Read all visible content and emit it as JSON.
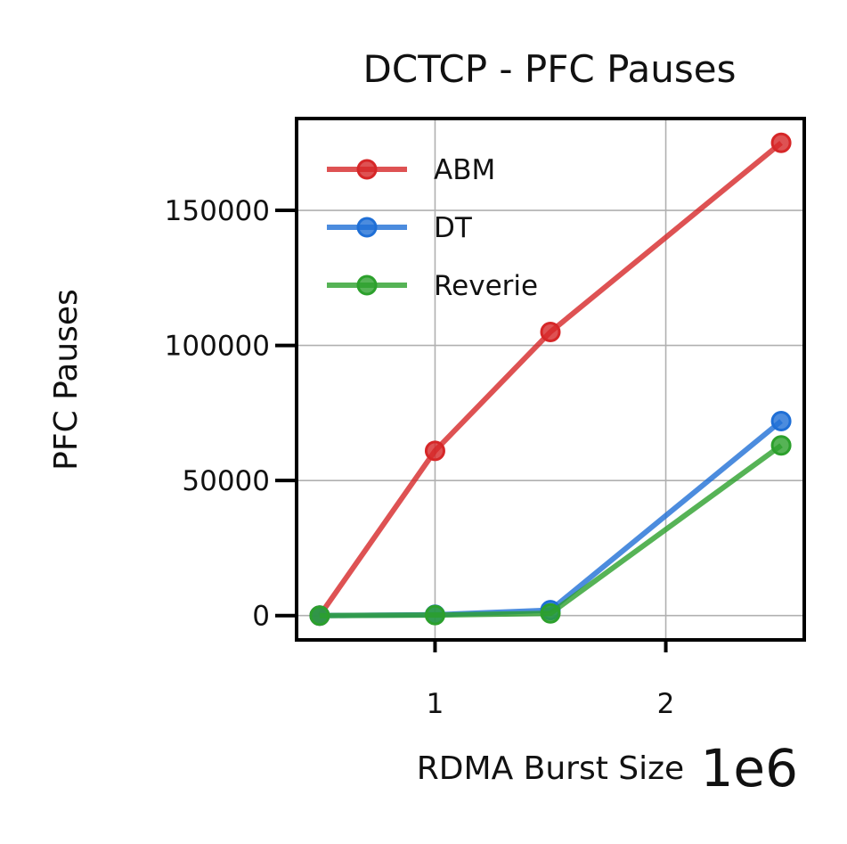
{
  "chart_data": {
    "type": "line",
    "title": "DCTCP - PFC Pauses",
    "xlabel": "RDMA Burst Size",
    "ylabel": "PFC Pauses",
    "x_offset_label": "1e6",
    "x": [
      500000,
      1000000,
      1500000,
      2500000
    ],
    "xlim": [
      400000,
      2600000
    ],
    "ylim": [
      -9000,
      184000
    ],
    "xticks": [
      1000000,
      2000000
    ],
    "xtick_labels": [
      "1",
      "2"
    ],
    "yticks": [
      0,
      50000,
      100000,
      150000
    ],
    "ytick_labels": [
      "0",
      "50000",
      "100000",
      "150000"
    ],
    "grid": true,
    "legend_position": "upper-left",
    "series": [
      {
        "name": "ABM",
        "color": "#d62728",
        "values": [
          0,
          61000,
          105000,
          175000
        ]
      },
      {
        "name": "DT",
        "color": "#1f6fd6",
        "values": [
          0,
          300,
          2000,
          72000
        ]
      },
      {
        "name": "Reverie",
        "color": "#2ca02c",
        "values": [
          0,
          200,
          800,
          63000
        ]
      }
    ]
  }
}
